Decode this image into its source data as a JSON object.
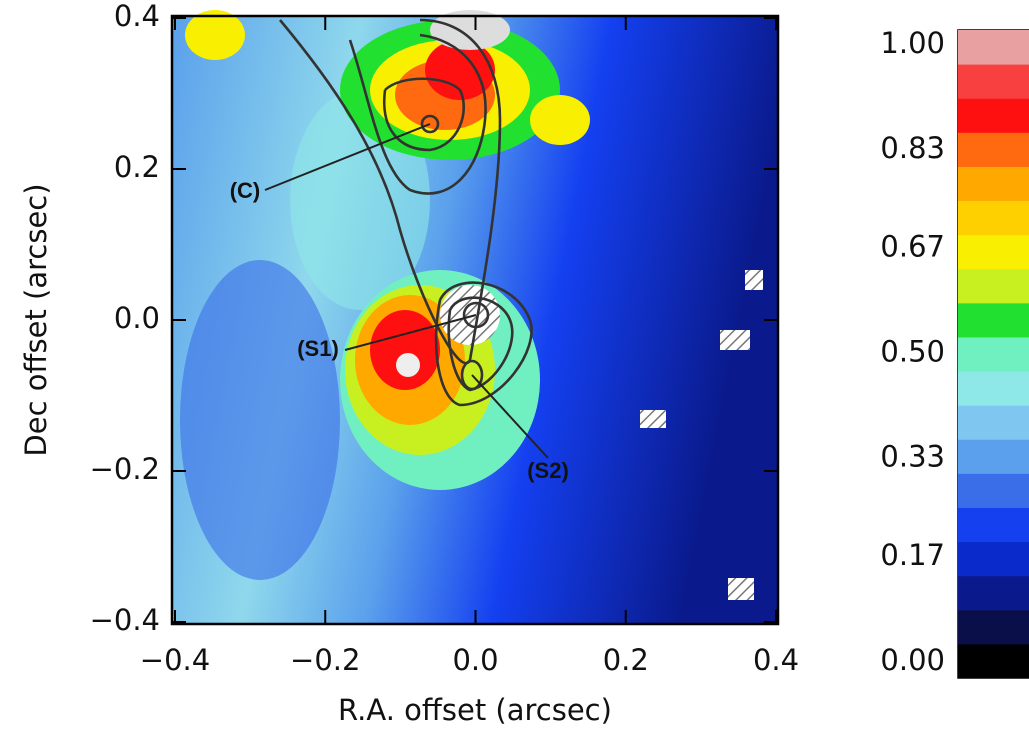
{
  "chart_data": {
    "type": "map",
    "xlabel": "R.A. offset (arcsec)",
    "ylabel": "Dec offset (arcsec)",
    "xlim": [
      -0.4,
      0.4
    ],
    "ylim": [
      -0.4,
      0.4
    ],
    "xticks": [
      {
        "value": -0.4,
        "label": "−0.4"
      },
      {
        "value": -0.2,
        "label": "−0.2"
      },
      {
        "value": 0,
        "label": "0.0"
      },
      0.2,
      0.4
    ],
    "yticks": [
      {
        "value": -0.4,
        "label": "−0.4"
      },
      {
        "value": -0.2,
        "label": "−0.2"
      },
      {
        "value": 0,
        "label": "0.0"
      },
      0.2,
      0.4
    ],
    "annotations": [
      "(C)",
      "(S1)",
      "(S2)"
    ],
    "colorbar": {
      "lim": [
        0,
        1
      ],
      "ticks": [
        {
          "value": 0,
          "label": "0.00"
        },
        0.17,
        0.33,
        {
          "value": 0.5,
          "label": "0.50"
        },
        0.67,
        0.83,
        {
          "value": 1,
          "label": "1.00"
        }
      ],
      "colors": [
        "#000000",
        "#0a0f4a",
        "#0a1a8c",
        "#0a2acc",
        "#1440f0",
        "#3a6ee8",
        "#5aa0ec",
        "#7fc6f0",
        "#8fe8e8",
        "#70f0c0",
        "#22e030",
        "#c8f020",
        "#f8f000",
        "#ffd000",
        "#ffa800",
        "#ff6a10",
        "#ff1010",
        "#f84040",
        "#e8a0a0"
      ]
    }
  }
}
